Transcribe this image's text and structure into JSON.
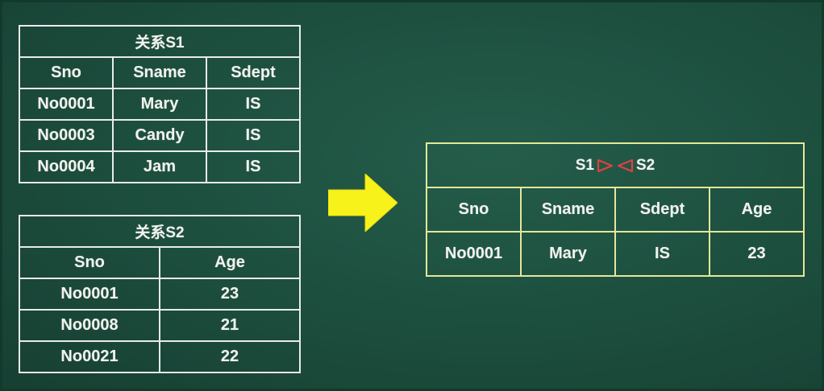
{
  "relation_s1": {
    "caption": "关系S1",
    "columns": [
      "Sno",
      "Sname",
      "Sdept"
    ],
    "rows": [
      [
        "No0001",
        "Mary",
        "IS"
      ],
      [
        "No0003",
        "Candy",
        "IS"
      ],
      [
        "No0004",
        "Jam",
        "IS"
      ]
    ]
  },
  "relation_s2": {
    "caption": "关系S2",
    "columns": [
      "Sno",
      "Age"
    ],
    "rows": [
      [
        "No0001",
        "23"
      ],
      [
        "No0008",
        "21"
      ],
      [
        "No0021",
        "22"
      ]
    ]
  },
  "result": {
    "left_operand": "S1",
    "right_operand": "S2",
    "operator_icon": "natural-join-icon",
    "columns": [
      "Sno",
      "Sname",
      "Sdept",
      "Age"
    ],
    "rows": [
      [
        "No0001",
        "Mary",
        "IS",
        "23"
      ]
    ]
  },
  "colors": {
    "board": "#1c4d3d",
    "grid_white": "#e9ece8",
    "grid_yellow": "#e3e89a",
    "arrow": "#f7f21a",
    "join_symbol": "#e0413f"
  }
}
